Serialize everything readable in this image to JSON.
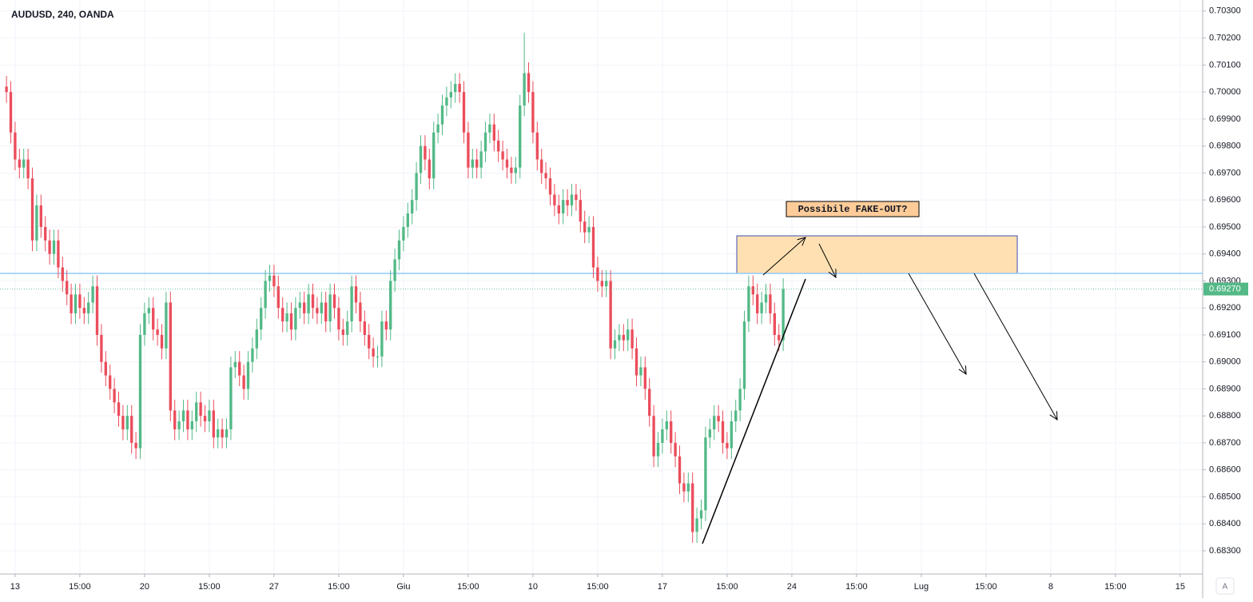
{
  "chart_data": {
    "type": "candlestick",
    "title": "AUDUSD, 240, OANDA",
    "annotation": "Possibile FAKE-OUT?",
    "up_color": "#53b987",
    "down_color": "#eb4d5c",
    "grid": true,
    "open": [
      0.7002,
      0.7,
      0.6985,
      0.6975,
      0.6972,
      0.6975,
      0.6968,
      0.6945,
      0.6958,
      0.695,
      0.6945,
      0.694,
      0.6945,
      0.6935,
      0.693,
      0.6925,
      0.6918,
      0.6925,
      0.692,
      0.6918,
      0.6922,
      0.6928,
      0.691,
      0.69,
      0.6895,
      0.689,
      0.6885,
      0.688,
      0.6875,
      0.688,
      0.687,
      0.6868,
      0.691,
      0.6918,
      0.692,
      0.6912,
      0.691,
      0.6905,
      0.6922,
      0.6882,
      0.6875,
      0.6878,
      0.6882,
      0.6875,
      0.6878,
      0.6885,
      0.688,
      0.6878,
      0.6882,
      0.6872,
      0.6875,
      0.6872,
      0.6875,
      0.6898,
      0.69,
      0.6895,
      0.689,
      0.69,
      0.6905,
      0.6912,
      0.692,
      0.693,
      0.6932,
      0.6928,
      0.692,
      0.6915,
      0.6918,
      0.6912,
      0.692,
      0.6922,
      0.6918,
      0.6925,
      0.692,
      0.6918,
      0.6922,
      0.6915,
      0.6925,
      0.692,
      0.6912,
      0.691,
      0.6915,
      0.6928,
      0.6922,
      0.6915,
      0.691,
      0.6905,
      0.6902,
      0.6902,
      0.6915,
      0.6912,
      0.693,
      0.6938,
      0.6945,
      0.695,
      0.6955,
      0.696,
      0.697,
      0.698,
      0.6975,
      0.6968,
      0.6985,
      0.6988,
      0.6995,
      0.6998,
      0.7,
      0.7003,
      0.7,
      0.6985,
      0.6972,
      0.6975,
      0.6972,
      0.6978,
      0.6985,
      0.6988,
      0.6982,
      0.6978,
      0.6975,
      0.6972,
      0.697,
      0.6972,
      0.6995,
      0.7007,
      0.7,
      0.6985,
      0.6975,
      0.697,
      0.6968,
      0.6962,
      0.6958,
      0.6955,
      0.696,
      0.6958,
      0.6962,
      0.696,
      0.6952,
      0.6948,
      0.695,
      0.6935,
      0.693,
      0.6928,
      0.693,
      0.6905,
      0.6908,
      0.691,
      0.6908,
      0.6912,
      0.6905,
      0.6895,
      0.6898,
      0.689,
      0.688,
      0.6865,
      0.687,
      0.6875,
      0.6878,
      0.687,
      0.6865,
      0.6855,
      0.6852,
      0.6855,
      0.6837,
      0.6842,
      0.6845,
      0.6872,
      0.6875,
      0.688,
      0.6878,
      0.687,
      0.6868,
      0.6878,
      0.6882,
      0.689,
      0.6915,
      0.6928,
      0.6925,
      0.6918,
      0.6922,
      0.6925,
      0.6918,
      0.691,
      0.6908
    ],
    "high": [
      0.7006,
      0.7004,
      0.6989,
      0.6979,
      0.6979,
      0.6979,
      0.6972,
      0.6962,
      0.6962,
      0.6954,
      0.6949,
      0.6949,
      0.6949,
      0.6939,
      0.6934,
      0.6929,
      0.6929,
      0.6929,
      0.6924,
      0.6926,
      0.6932,
      0.6932,
      0.6914,
      0.6904,
      0.6899,
      0.6894,
      0.6889,
      0.6884,
      0.6884,
      0.6884,
      0.6874,
      0.6914,
      0.6922,
      0.6924,
      0.6924,
      0.6916,
      0.6914,
      0.6926,
      0.6926,
      0.6886,
      0.6882,
      0.6886,
      0.6886,
      0.6882,
      0.6889,
      0.6889,
      0.6884,
      0.6886,
      0.6886,
      0.6879,
      0.6879,
      0.6879,
      0.6902,
      0.6904,
      0.6904,
      0.6899,
      0.6904,
      0.6909,
      0.6916,
      0.6924,
      0.6934,
      0.6936,
      0.6936,
      0.6932,
      0.6924,
      0.6922,
      0.6922,
      0.6924,
      0.6926,
      0.6926,
      0.6929,
      0.6929,
      0.6924,
      0.6926,
      0.6926,
      0.6929,
      0.6929,
      0.6924,
      0.6916,
      0.6919,
      0.6932,
      0.6932,
      0.6926,
      0.6919,
      0.6914,
      0.6909,
      0.6906,
      0.6919,
      0.6919,
      0.6934,
      0.6942,
      0.6949,
      0.6954,
      0.6959,
      0.6964,
      0.6974,
      0.6984,
      0.6984,
      0.6979,
      0.6989,
      0.6992,
      0.6999,
      0.7002,
      0.7004,
      0.7007,
      0.7007,
      0.7004,
      0.6989,
      0.6979,
      0.6979,
      0.6982,
      0.6989,
      0.6992,
      0.6992,
      0.6986,
      0.6982,
      0.6979,
      0.6976,
      0.6976,
      0.6999,
      0.7022,
      0.7011,
      0.7004,
      0.6989,
      0.6979,
      0.6974,
      0.6972,
      0.6966,
      0.6962,
      0.6964,
      0.6964,
      0.6966,
      0.6966,
      0.6964,
      0.6956,
      0.6954,
      0.6954,
      0.6939,
      0.6934,
      0.6934,
      0.6934,
      0.6912,
      0.6914,
      0.6914,
      0.6916,
      0.6916,
      0.6909,
      0.6902,
      0.6902,
      0.6894,
      0.6884,
      0.6874,
      0.6879,
      0.6882,
      0.6882,
      0.6874,
      0.6869,
      0.6859,
      0.6859,
      0.6859,
      0.6846,
      0.6849,
      0.6876,
      0.6879,
      0.6884,
      0.6884,
      0.6882,
      0.6874,
      0.6882,
      0.6886,
      0.6894,
      0.6919,
      0.6932,
      0.6932,
      0.6929,
      0.6926,
      0.6929,
      0.6929,
      0.6922,
      0.6914,
      0.6931
    ],
    "low": [
      0.6996,
      0.6981,
      0.6971,
      0.6968,
      0.6968,
      0.6964,
      0.6941,
      0.6941,
      0.6946,
      0.6941,
      0.6936,
      0.6936,
      0.6931,
      0.6926,
      0.6921,
      0.6914,
      0.6914,
      0.6916,
      0.6914,
      0.6914,
      0.6918,
      0.6906,
      0.6896,
      0.6891,
      0.6886,
      0.6881,
      0.6876,
      0.6871,
      0.6871,
      0.6866,
      0.6864,
      0.6864,
      0.6906,
      0.6914,
      0.6908,
      0.6906,
      0.6901,
      0.6901,
      0.6878,
      0.6871,
      0.6871,
      0.6874,
      0.6871,
      0.6871,
      0.6874,
      0.6876,
      0.6874,
      0.6874,
      0.6868,
      0.6868,
      0.6868,
      0.6868,
      0.6871,
      0.6894,
      0.6891,
      0.6886,
      0.6886,
      0.6896,
      0.6901,
      0.6908,
      0.6916,
      0.6926,
      0.6924,
      0.6916,
      0.6911,
      0.6911,
      0.6908,
      0.6908,
      0.6916,
      0.6914,
      0.6914,
      0.6916,
      0.6914,
      0.6914,
      0.6911,
      0.6911,
      0.6916,
      0.6908,
      0.6906,
      0.6906,
      0.6911,
      0.6918,
      0.6911,
      0.6906,
      0.6901,
      0.6898,
      0.6898,
      0.6898,
      0.6908,
      0.6908,
      0.6926,
      0.6934,
      0.6941,
      0.6946,
      0.6951,
      0.6956,
      0.6966,
      0.6971,
      0.6964,
      0.6964,
      0.6981,
      0.6984,
      0.6991,
      0.6994,
      0.6996,
      0.6996,
      0.6981,
      0.6968,
      0.6968,
      0.6968,
      0.6968,
      0.6974,
      0.6981,
      0.6978,
      0.6974,
      0.6971,
      0.6968,
      0.6966,
      0.6966,
      0.6968,
      0.6991,
      0.6996,
      0.6981,
      0.6971,
      0.6966,
      0.6964,
      0.6958,
      0.6954,
      0.6951,
      0.6951,
      0.6954,
      0.6954,
      0.6956,
      0.6948,
      0.6944,
      0.6944,
      0.6931,
      0.6926,
      0.6924,
      0.6924,
      0.6901,
      0.6901,
      0.6904,
      0.6904,
      0.6904,
      0.6901,
      0.6891,
      0.6891,
      0.6886,
      0.6876,
      0.6861,
      0.6861,
      0.6866,
      0.6871,
      0.6866,
      0.6861,
      0.6851,
      0.6848,
      0.6848,
      0.6833,
      0.6833,
      0.6838,
      0.6841,
      0.6868,
      0.6871,
      0.6874,
      0.6866,
      0.6864,
      0.6864,
      0.6874,
      0.6878,
      0.6886,
      0.6911,
      0.6921,
      0.6914,
      0.6914,
      0.6918,
      0.6914,
      0.6906,
      0.6904,
      0.6904
    ],
    "close": [
      0.7,
      0.6985,
      0.6975,
      0.6972,
      0.6975,
      0.6968,
      0.6945,
      0.6958,
      0.695,
      0.6945,
      0.694,
      0.6945,
      0.6935,
      0.693,
      0.6925,
      0.6918,
      0.6925,
      0.692,
      0.6918,
      0.6922,
      0.6928,
      0.691,
      0.69,
      0.6895,
      0.689,
      0.6885,
      0.688,
      0.6875,
      0.688,
      0.687,
      0.6868,
      0.691,
      0.6918,
      0.692,
      0.6912,
      0.691,
      0.6905,
      0.6922,
      0.6882,
      0.6875,
      0.6878,
      0.6882,
      0.6875,
      0.6878,
      0.6885,
      0.688,
      0.6878,
      0.6882,
      0.6872,
      0.6875,
      0.6872,
      0.6875,
      0.6898,
      0.69,
      0.6895,
      0.689,
      0.69,
      0.6905,
      0.6912,
      0.692,
      0.693,
      0.6932,
      0.6928,
      0.692,
      0.6915,
      0.6918,
      0.6912,
      0.692,
      0.6922,
      0.6918,
      0.6925,
      0.692,
      0.6918,
      0.6922,
      0.6915,
      0.6925,
      0.692,
      0.6912,
      0.691,
      0.6915,
      0.6928,
      0.6922,
      0.6915,
      0.691,
      0.6905,
      0.6902,
      0.6902,
      0.6915,
      0.6912,
      0.693,
      0.6938,
      0.6945,
      0.695,
      0.6955,
      0.696,
      0.697,
      0.698,
      0.6975,
      0.6968,
      0.6985,
      0.6988,
      0.6995,
      0.6998,
      0.7,
      0.7003,
      0.7,
      0.6985,
      0.6972,
      0.6975,
      0.6972,
      0.6978,
      0.6985,
      0.6988,
      0.6982,
      0.6978,
      0.6975,
      0.6972,
      0.697,
      0.6972,
      0.6995,
      0.7007,
      0.7,
      0.6985,
      0.6975,
      0.697,
      0.6968,
      0.6962,
      0.6958,
      0.6955,
      0.696,
      0.6958,
      0.6962,
      0.696,
      0.6952,
      0.6948,
      0.695,
      0.6935,
      0.693,
      0.6928,
      0.693,
      0.6905,
      0.6908,
      0.691,
      0.6908,
      0.6912,
      0.6905,
      0.6895,
      0.6898,
      0.689,
      0.688,
      0.6865,
      0.687,
      0.6875,
      0.6878,
      0.687,
      0.6865,
      0.6855,
      0.6852,
      0.6855,
      0.6837,
      0.6842,
      0.6845,
      0.6872,
      0.6875,
      0.688,
      0.6878,
      0.687,
      0.6868,
      0.6878,
      0.6882,
      0.689,
      0.6915,
      0.6928,
      0.6925,
      0.6918,
      0.6922,
      0.6925,
      0.6918,
      0.691,
      0.6908,
      0.6927
    ],
    "xlim": [
      -1.5,
      277.2
    ],
    "xticks": [
      {
        "value": 2,
        "label": "13"
      },
      {
        "value": 17,
        "label": "15:00"
      },
      {
        "value": 32,
        "label": "20"
      },
      {
        "value": 47,
        "label": "15:00"
      },
      {
        "value": 62,
        "label": "27"
      },
      {
        "value": 77,
        "label": "15:00"
      },
      {
        "value": 92,
        "label": "Giu"
      },
      {
        "value": 107,
        "label": "15:00"
      },
      {
        "value": 122,
        "label": "10"
      },
      {
        "value": 137,
        "label": "15:00"
      },
      {
        "value": 152,
        "label": "17"
      },
      {
        "value": 167,
        "label": "15:00"
      },
      {
        "value": 182,
        "label": "24"
      },
      {
        "value": 197,
        "label": "15:00"
      },
      {
        "value": 212,
        "label": "Lug"
      },
      {
        "value": 227,
        "label": "15:00"
      },
      {
        "value": 242,
        "label": "8"
      },
      {
        "value": 257,
        "label": "15:00"
      },
      {
        "value": 272,
        "label": "15"
      }
    ],
    "ylim": [
      0.68214,
      0.70341
    ],
    "yticks": [
      {
        "value": 0.703,
        "label": "0.70300"
      },
      {
        "value": 0.702,
        "label": "0.70200"
      },
      {
        "value": 0.701,
        "label": "0.70100"
      },
      {
        "value": 0.7,
        "label": "0.70000"
      },
      {
        "value": 0.699,
        "label": "0.69900"
      },
      {
        "value": 0.698,
        "label": "0.69800"
      },
      {
        "value": 0.697,
        "label": "0.69700"
      },
      {
        "value": 0.696,
        "label": "0.69600"
      },
      {
        "value": 0.695,
        "label": "0.69500"
      },
      {
        "value": 0.694,
        "label": "0.69400"
      },
      {
        "value": 0.693,
        "label": "0.69300"
      },
      {
        "value": 0.692,
        "label": "0.69200"
      },
      {
        "value": 0.691,
        "label": "0.69100"
      },
      {
        "value": 0.69,
        "label": "0.69000"
      },
      {
        "value": 0.689,
        "label": "0.68900"
      },
      {
        "value": 0.688,
        "label": "0.68800"
      },
      {
        "value": 0.687,
        "label": "0.68700"
      },
      {
        "value": 0.686,
        "label": "0.68600"
      },
      {
        "value": 0.685,
        "label": "0.68500"
      },
      {
        "value": 0.684,
        "label": "0.68400"
      },
      {
        "value": 0.683,
        "label": "0.68300"
      }
    ],
    "last_price": {
      "value": 0.6927,
      "label": "0.69270"
    }
  },
  "auto_button": "A"
}
